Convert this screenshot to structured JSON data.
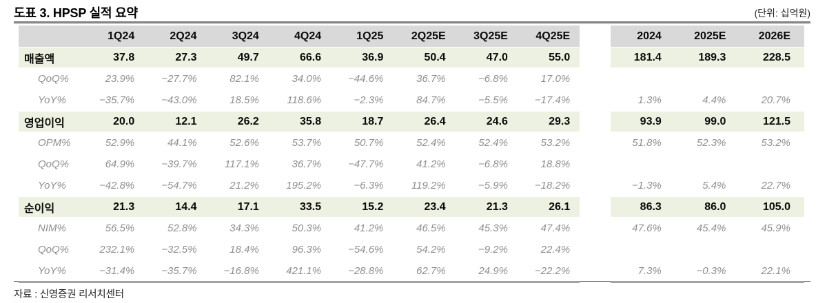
{
  "title": "도표 3. HPSP 실적 요약",
  "unit_note": "(단위: 십억원)",
  "source_note": "자료 : 신영증권 리서치센터",
  "colors": {
    "header_bg": "#d9d9d9",
    "highlight_row_bg": "#edf1e1",
    "pct_text": "#8f8f8f",
    "rule_gray": "#a3a3a3",
    "rule_dark": "#5a5a5a"
  },
  "table": {
    "quarter_columns": [
      "1Q24",
      "2Q24",
      "3Q24",
      "4Q24",
      "1Q25",
      "2Q25E",
      "3Q25E",
      "4Q25E"
    ],
    "annual_columns": [
      "2024",
      "2025E",
      "2026E"
    ],
    "rows": [
      {
        "label": "매출액",
        "type": "highlight",
        "quarters": [
          "37.8",
          "27.3",
          "49.7",
          "66.6",
          "36.9",
          "50.4",
          "47.0",
          "55.0"
        ],
        "annual": [
          "181.4",
          "189.3",
          "228.5"
        ]
      },
      {
        "label": "QoQ%",
        "type": "pct",
        "quarters": [
          "23.9%",
          "−27.7%",
          "82.1%",
          "34.0%",
          "−44.6%",
          "36.7%",
          "−6.8%",
          "17.0%"
        ],
        "annual": [
          "",
          "",
          ""
        ]
      },
      {
        "label": "YoY%",
        "type": "pct",
        "quarters": [
          "−35.7%",
          "−43.0%",
          "18.5%",
          "118.6%",
          "−2.3%",
          "84.7%",
          "−5.5%",
          "−17.4%"
        ],
        "annual": [
          "1.3%",
          "4.4%",
          "20.7%"
        ]
      },
      {
        "label": "영업이익",
        "type": "highlight",
        "quarters": [
          "20.0",
          "12.1",
          "26.2",
          "35.8",
          "18.7",
          "26.4",
          "24.6",
          "29.3"
        ],
        "annual": [
          "93.9",
          "99.0",
          "121.5"
        ]
      },
      {
        "label": "OPM%",
        "type": "pct",
        "quarters": [
          "52.9%",
          "44.1%",
          "52.6%",
          "53.7%",
          "50.7%",
          "52.4%",
          "52.4%",
          "53.2%"
        ],
        "annual": [
          "51.8%",
          "52.3%",
          "53.2%"
        ]
      },
      {
        "label": "QoQ%",
        "type": "pct",
        "quarters": [
          "64.9%",
          "−39.7%",
          "117.1%",
          "36.7%",
          "−47.7%",
          "41.2%",
          "−6.8%",
          "18.8%"
        ],
        "annual": [
          "",
          "",
          ""
        ]
      },
      {
        "label": "YoY%",
        "type": "pct",
        "quarters": [
          "−42.8%",
          "−54.7%",
          "21.2%",
          "195.2%",
          "−6.3%",
          "119.2%",
          "−5.9%",
          "−18.2%"
        ],
        "annual": [
          "−1.3%",
          "5.4%",
          "22.7%"
        ]
      },
      {
        "label": "순이익",
        "type": "highlight",
        "quarters": [
          "21.3",
          "14.4",
          "17.1",
          "33.5",
          "15.2",
          "23.4",
          "21.3",
          "26.1"
        ],
        "annual": [
          "86.3",
          "86.0",
          "105.0"
        ]
      },
      {
        "label": "NIM%",
        "type": "pct",
        "quarters": [
          "56.5%",
          "52.8%",
          "34.3%",
          "50.3%",
          "41.2%",
          "46.5%",
          "45.3%",
          "47.4%"
        ],
        "annual": [
          "47.6%",
          "45.4%",
          "45.9%"
        ]
      },
      {
        "label": "QoQ%",
        "type": "pct",
        "quarters": [
          "232.1%",
          "−32.5%",
          "18.4%",
          "96.3%",
          "−54.6%",
          "54.2%",
          "−9.2%",
          "22.4%"
        ],
        "annual": [
          "",
          "",
          ""
        ]
      },
      {
        "label": "YoY%",
        "type": "pct",
        "quarters": [
          "−31.4%",
          "−35.7%",
          "−16.8%",
          "421.1%",
          "−28.8%",
          "62.7%",
          "24.9%",
          "−22.2%"
        ],
        "annual": [
          "7.3%",
          "−0.3%",
          "22.1%"
        ]
      }
    ]
  }
}
